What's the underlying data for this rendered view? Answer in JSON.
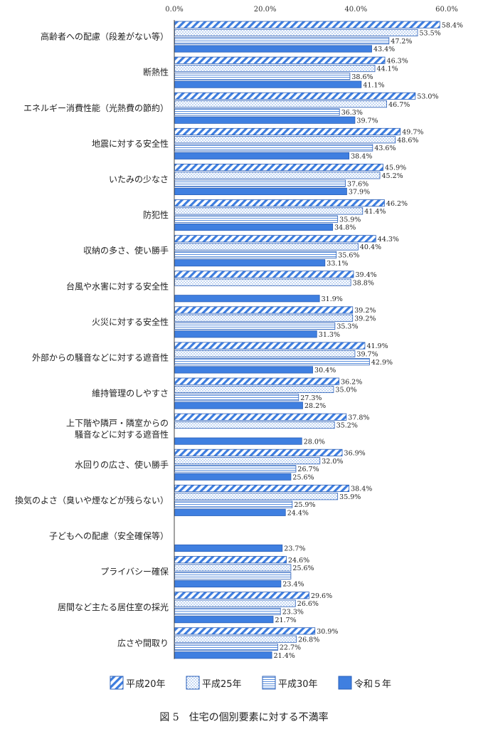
{
  "chart_data": {
    "type": "bar",
    "orientation": "horizontal",
    "xlim": [
      0,
      60
    ],
    "ticks": [
      "0.0%",
      "20.0%",
      "40.0%",
      "60.0%"
    ],
    "categories": [
      "高齢者への配慮（段差がない等）",
      "断熱性",
      "エネルギー消費性能（光熱費の節約）",
      "地震に対する安全性",
      "いたみの少なさ",
      "防犯性",
      "収納の多さ、使い勝手",
      "台風や水害に対する安全性",
      "火災に対する安全性",
      "外部からの騒音などに対する遮音性",
      "維持管理のしやすさ",
      "上下階や隣戸・隣室からの\n騒音などに対する遮音性",
      "水回りの広さ、使い勝手",
      "換気のよさ（臭いや煙などが残らない）",
      "子どもへの配慮（安全確保等）",
      "プライバシー確保",
      "居間など主たる居住室の採光",
      "広さや間取り"
    ],
    "series": [
      {
        "name": "平成20年",
        "pattern": "diagonal",
        "values": [
          58.4,
          46.3,
          53.0,
          49.7,
          45.9,
          46.2,
          44.3,
          39.4,
          39.2,
          41.9,
          36.2,
          37.8,
          36.9,
          38.4,
          null,
          24.6,
          29.6,
          30.9
        ],
        "labels": [
          "58.4%",
          "46.3%",
          "53.0%",
          "49.7%",
          "45.9%",
          "46.2%",
          "44.3%",
          "39.4%",
          "39.2%",
          "41.9%",
          "36.2%",
          "37.8%",
          "36.9%",
          "38.4%",
          "",
          "24.6%",
          "29.6%",
          "30.9%"
        ]
      },
      {
        "name": "平成25年",
        "pattern": "dotted",
        "values": [
          53.5,
          44.1,
          46.7,
          48.6,
          45.2,
          41.4,
          40.4,
          38.8,
          39.2,
          39.7,
          35.0,
          35.2,
          32.0,
          35.9,
          null,
          25.6,
          26.6,
          26.8
        ],
        "labels": [
          "53.5%",
          "44.1%",
          "46.7%",
          "48.6%",
          "45.2%",
          "41.4%",
          "40.4%",
          "38.8%",
          "39.2%",
          "39.7%",
          "35.0%",
          "35.2%",
          "32.0%",
          "35.9%",
          "",
          "25.6%",
          "26.6%",
          "26.8%"
        ]
      },
      {
        "name": "平成30年",
        "pattern": "horizontal",
        "values": [
          47.2,
          38.6,
          36.3,
          43.6,
          37.6,
          35.9,
          35.6,
          null,
          35.3,
          42.9,
          27.3,
          null,
          26.7,
          25.9,
          null,
          25.6,
          23.3,
          22.7
        ],
        "labels": [
          "47.2%",
          "38.6%",
          "36.3%",
          "43.6%",
          "37.6%",
          "35.9%",
          "35.6%",
          "",
          "35.3%",
          "42.9%",
          "27.3%",
          "",
          "26.7%",
          "25.9%",
          "",
          "",
          "23.3%",
          "22.7%"
        ]
      },
      {
        "name": "令和５年",
        "pattern": "solid",
        "values": [
          43.4,
          41.1,
          39.7,
          38.4,
          37.9,
          34.8,
          33.1,
          31.9,
          31.3,
          30.4,
          28.2,
          28.0,
          25.6,
          24.4,
          23.7,
          23.4,
          21.7,
          21.4
        ],
        "labels": [
          "43.4%",
          "41.1%",
          "39.7%",
          "38.4%",
          "37.9%",
          "34.8%",
          "33.1%",
          "31.9%",
          "31.3%",
          "30.4%",
          "28.2%",
          "28.0%",
          "25.6%",
          "24.4%",
          "23.7%",
          "23.4%",
          "21.7%",
          "21.4%"
        ]
      }
    ],
    "colors": {
      "bar_blue": "#3f7fe0",
      "stroke": "#2a5fb8",
      "pattern_blue": "#3d7ddf"
    },
    "legend_position": "bottom",
    "grid": false
  },
  "caption": "図 5　住宅の個別要素に対する不満率"
}
